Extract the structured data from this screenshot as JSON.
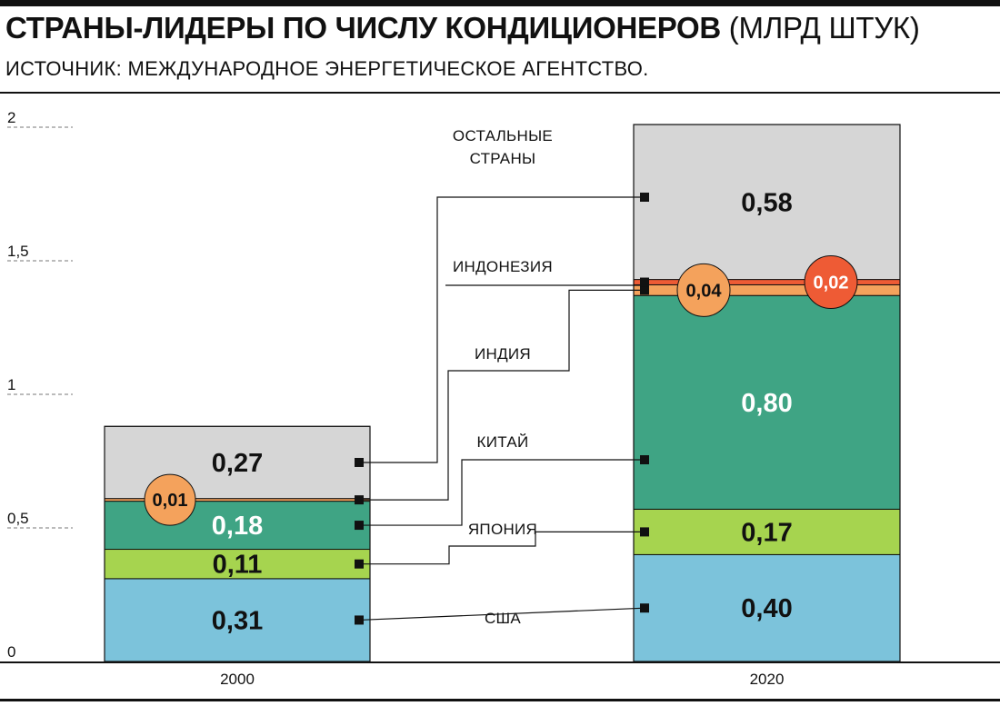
{
  "header": {
    "title": "СТРАНЫ-ЛИДЕРЫ ПО ЧИСЛУ КОНДИЦИОНЕРОВ",
    "unit": "(МЛРД ШТУК)",
    "source": "ИСТОЧНИК: МЕЖДУНАРОДНОЕ ЭНЕРГЕТИЧЕСКОЕ АГЕНТСТВО."
  },
  "chart_data": {
    "type": "bar",
    "stacked": true,
    "categories": [
      "2000",
      "2020"
    ],
    "ylim": [
      0,
      2
    ],
    "y_ticks": [
      "0",
      "0,5",
      "1",
      "1,5",
      "2"
    ],
    "series": [
      {
        "name": "США",
        "values": [
          0.31,
          0.4
        ],
        "labels": [
          "0,31",
          "0,40"
        ],
        "color": "#7cc3db",
        "label_color": "#111111"
      },
      {
        "name": "ЯПОНИЯ",
        "values": [
          0.11,
          0.17
        ],
        "labels": [
          "0,11",
          "0,17"
        ],
        "color": "#a6d44f",
        "label_color": "#111111"
      },
      {
        "name": "КИТАЙ",
        "values": [
          0.18,
          0.8
        ],
        "labels": [
          "0,18",
          "0,80"
        ],
        "color": "#3fa484",
        "label_color": "#ffffff"
      },
      {
        "name": "ИНДИЯ",
        "values": [
          0.01,
          0.04
        ],
        "labels": [
          "0,01",
          "0,04"
        ],
        "color": "#f4a25c",
        "label_color": "#111111"
      },
      {
        "name": "ИНДОНЕЗИЯ",
        "values": [
          0.0,
          0.02
        ],
        "labels": [
          "",
          "0,02"
        ],
        "color": "#ee5b35",
        "label_color": "#ffffff"
      },
      {
        "name": "ОСТАЛЬНЫЕ СТРАНЫ",
        "values": [
          0.27,
          0.58
        ],
        "labels": [
          "0,27",
          "0,58"
        ],
        "color": "#d6d6d6",
        "label_color": "#111111"
      }
    ],
    "series_label_lines": {
      "ОСТАЛЬНЫЕ СТРАНЫ": [
        "ОСТАЛЬНЫЕ",
        "СТРАНЫ"
      ]
    },
    "grid": false,
    "legend": "inline-center"
  }
}
